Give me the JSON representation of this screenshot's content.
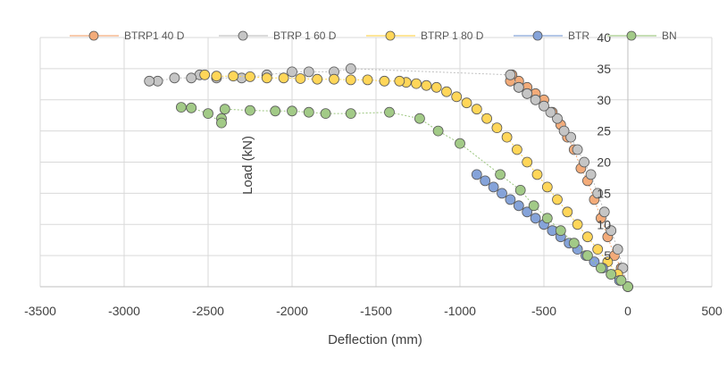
{
  "chart_data": {
    "type": "scatter",
    "title": "",
    "xlabel": "Deflection (mm)",
    "ylabel": "Load (kN)",
    "xlim": [
      -3500,
      500
    ],
    "ylim": [
      0,
      40
    ],
    "xticks": [
      -3500,
      -3000,
      -2500,
      -2000,
      -1500,
      -1000,
      -500,
      0,
      500
    ],
    "yticks": [
      5,
      10,
      15,
      20,
      25,
      30,
      35,
      40
    ],
    "grid": true,
    "legend": "top",
    "series": [
      {
        "name": "BTRP1 40 D",
        "color": "#ED7D31",
        "points": [
          [
            0,
            0
          ],
          [
            -40,
            3
          ],
          [
            -80,
            5
          ],
          [
            -120,
            8
          ],
          [
            -160,
            11
          ],
          [
            -200,
            14
          ],
          [
            -240,
            17
          ],
          [
            -280,
            19
          ],
          [
            -320,
            22
          ],
          [
            -360,
            24
          ],
          [
            -400,
            26
          ],
          [
            -450,
            28
          ],
          [
            -500,
            30
          ],
          [
            -550,
            31
          ],
          [
            -600,
            32
          ],
          [
            -650,
            33
          ],
          [
            -690,
            34
          ],
          [
            -700,
            33
          ],
          [
            -650,
            32
          ],
          [
            -600,
            31
          ]
        ]
      },
      {
        "name": "BTRP 1 60 D",
        "color": "#A5A5A5",
        "points": [
          [
            0,
            0
          ],
          [
            -30,
            3
          ],
          [
            -60,
            6
          ],
          [
            -100,
            9
          ],
          [
            -140,
            12
          ],
          [
            -180,
            15
          ],
          [
            -220,
            18
          ],
          [
            -260,
            20
          ],
          [
            -300,
            22
          ],
          [
            -340,
            24
          ],
          [
            -380,
            25
          ],
          [
            -420,
            27
          ],
          [
            -460,
            28
          ],
          [
            -500,
            29
          ],
          [
            -550,
            30
          ],
          [
            -600,
            31
          ],
          [
            -650,
            32
          ],
          [
            -700,
            34
          ],
          [
            -1650,
            35
          ],
          [
            -1750,
            34.5
          ],
          [
            -1900,
            34.5
          ],
          [
            -2000,
            34.5
          ],
          [
            -2150,
            34
          ],
          [
            -2300,
            33.5
          ],
          [
            -2450,
            33.5
          ],
          [
            -2550,
            34
          ],
          [
            -2600,
            33.5
          ],
          [
            -2700,
            33.5
          ],
          [
            -2800,
            33
          ],
          [
            -2850,
            33
          ]
        ]
      },
      {
        "name": "BTRP 1 80 D",
        "color": "#FFC000",
        "points": [
          [
            0,
            0
          ],
          [
            -60,
            2
          ],
          [
            -120,
            4
          ],
          [
            -180,
            6
          ],
          [
            -240,
            8
          ],
          [
            -300,
            10
          ],
          [
            -360,
            12
          ],
          [
            -420,
            14
          ],
          [
            -480,
            16
          ],
          [
            -540,
            18
          ],
          [
            -600,
            20
          ],
          [
            -660,
            22
          ],
          [
            -720,
            24
          ],
          [
            -780,
            25.5
          ],
          [
            -840,
            27
          ],
          [
            -900,
            28.5
          ],
          [
            -960,
            29.5
          ],
          [
            -1020,
            30.5
          ],
          [
            -1080,
            31.3
          ],
          [
            -1140,
            32
          ],
          [
            -1200,
            32.3
          ],
          [
            -1260,
            32.6
          ],
          [
            -1320,
            32.8
          ],
          [
            -1360,
            33
          ],
          [
            -1450,
            33
          ],
          [
            -1550,
            33.2
          ],
          [
            -1650,
            33.2
          ],
          [
            -1750,
            33.3
          ],
          [
            -1850,
            33.3
          ],
          [
            -1950,
            33.4
          ],
          [
            -2050,
            33.5
          ],
          [
            -2150,
            33.5
          ],
          [
            -2250,
            33.7
          ],
          [
            -2350,
            33.8
          ],
          [
            -2450,
            33.8
          ],
          [
            -2520,
            34
          ]
        ]
      },
      {
        "name": "BTR",
        "color": "#4472C4",
        "points": [
          [
            0,
            0
          ],
          [
            -50,
            1
          ],
          [
            -100,
            2
          ],
          [
            -150,
            3
          ],
          [
            -200,
            4
          ],
          [
            -250,
            5
          ],
          [
            -300,
            6
          ],
          [
            -350,
            7
          ],
          [
            -400,
            8
          ],
          [
            -450,
            9
          ],
          [
            -500,
            10
          ],
          [
            -550,
            11
          ],
          [
            -600,
            12
          ],
          [
            -650,
            13
          ],
          [
            -700,
            14
          ],
          [
            -750,
            15
          ],
          [
            -800,
            16
          ],
          [
            -850,
            17
          ],
          [
            -900,
            18
          ]
        ]
      },
      {
        "name": "BN",
        "color": "#70AD47",
        "points": [
          [
            0,
            0
          ],
          [
            -40,
            1
          ],
          [
            -100,
            2
          ],
          [
            -160,
            3
          ],
          [
            -240,
            5
          ],
          [
            -320,
            7
          ],
          [
            -400,
            9
          ],
          [
            -480,
            11
          ],
          [
            -560,
            13
          ],
          [
            -640,
            15.5
          ],
          [
            -760,
            18
          ],
          [
            -1000,
            23
          ],
          [
            -1130,
            25
          ],
          [
            -1240,
            27
          ],
          [
            -1420,
            28
          ],
          [
            -1650,
            27.8
          ],
          [
            -1800,
            27.8
          ],
          [
            -1900,
            28
          ],
          [
            -2000,
            28.2
          ],
          [
            -2100,
            28.2
          ],
          [
            -2250,
            28.3
          ],
          [
            -2400,
            28.5
          ],
          [
            -2420,
            27
          ],
          [
            -2420,
            26.3
          ],
          [
            -2500,
            27.8
          ],
          [
            -2600,
            28.7
          ],
          [
            -2660,
            28.8
          ]
        ]
      }
    ]
  }
}
